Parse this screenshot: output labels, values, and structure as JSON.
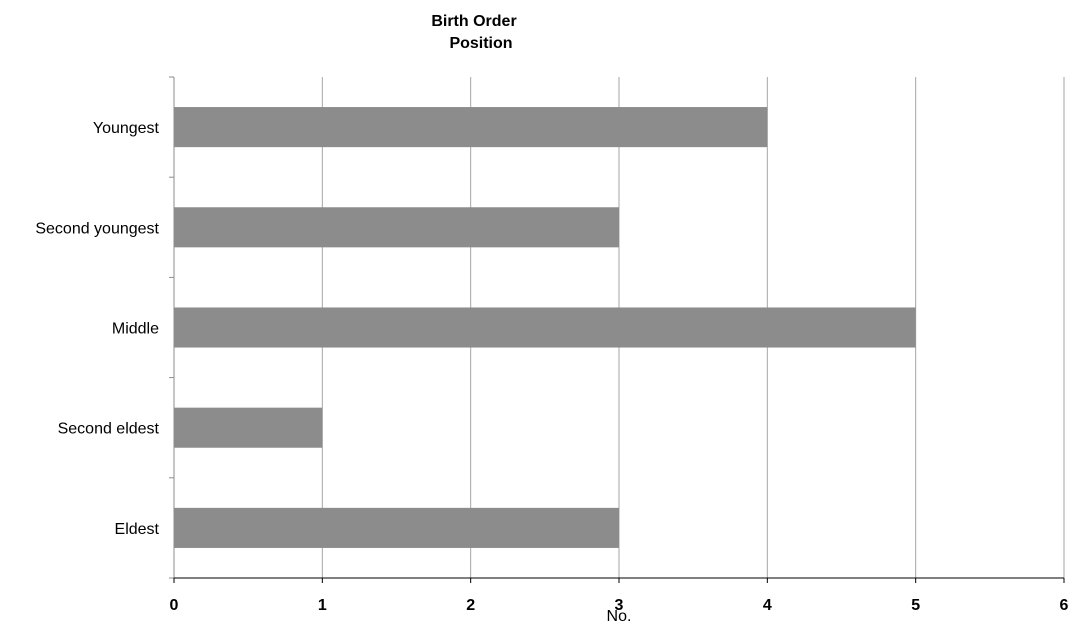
{
  "chart_data": {
    "type": "bar",
    "orientation": "horizontal",
    "title_lines": [
      "Birth  Order",
      "Position"
    ],
    "xlabel": "No.",
    "ylabel": "",
    "categories": [
      "Youngest",
      "Second youngest",
      "Middle",
      "Second eldest",
      "Eldest"
    ],
    "values": [
      4,
      3,
      5,
      1,
      3
    ],
    "xlim": [
      0,
      6
    ],
    "xticks": [
      "0",
      "1",
      "2",
      "3",
      "4",
      "5",
      "6"
    ],
    "bar_color": "#8c8c8c",
    "gridlines": "vertical",
    "legend": "none"
  }
}
